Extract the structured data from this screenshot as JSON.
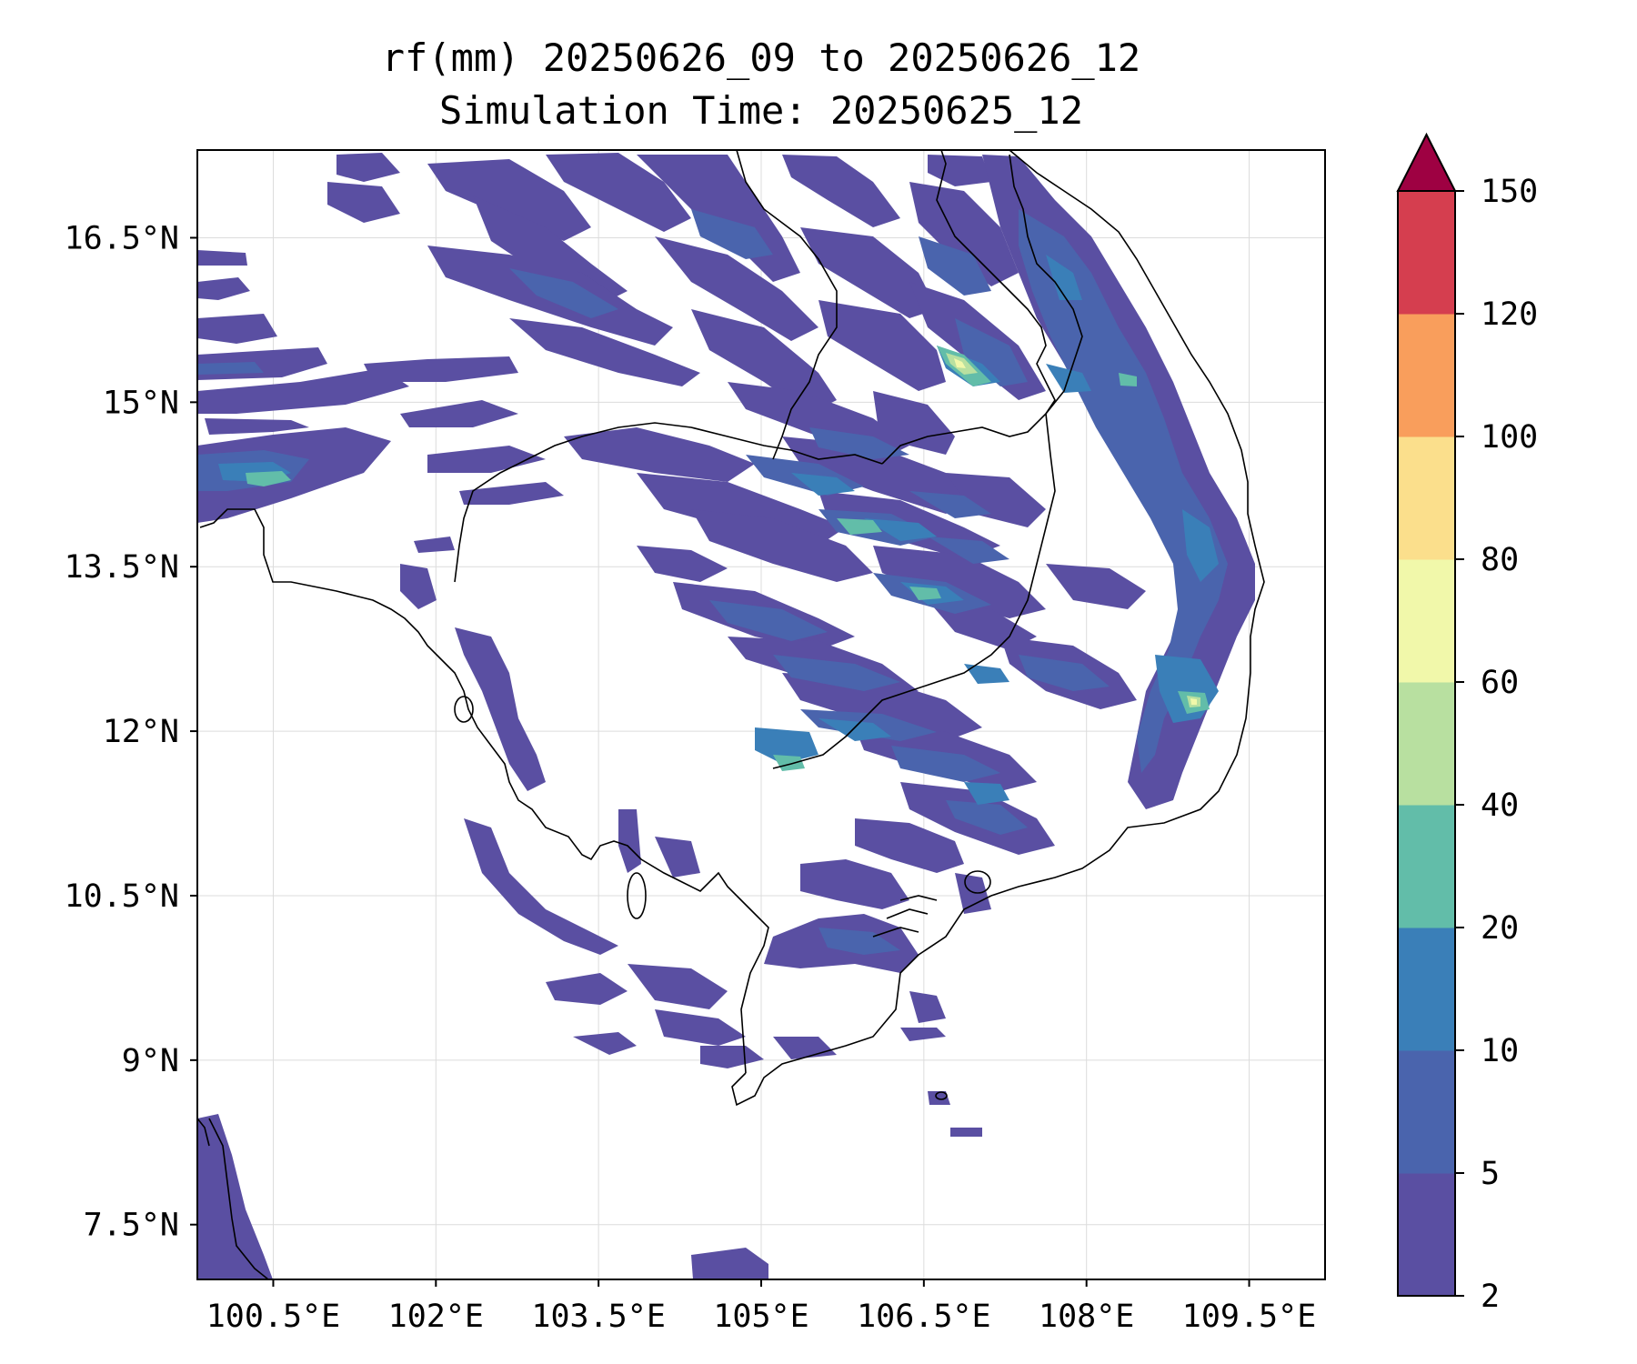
{
  "title": {
    "line1": "rf(mm) 20250626_09 to 20250626_12",
    "line2": "Simulation Time: 20250625_12"
  },
  "map": {
    "lon_range": [
      99.8,
      110.2
    ],
    "lat_range": [
      7.0,
      17.3
    ],
    "x_ticks": [
      {
        "value": 100.5,
        "label": "100.5°E"
      },
      {
        "value": 102.0,
        "label": "102°E"
      },
      {
        "value": 103.5,
        "label": "103.5°E"
      },
      {
        "value": 105.0,
        "label": "105°E"
      },
      {
        "value": 106.5,
        "label": "106.5°E"
      },
      {
        "value": 108.0,
        "label": "108°E"
      },
      {
        "value": 109.5,
        "label": "109.5°E"
      }
    ],
    "y_ticks": [
      {
        "value": 16.5,
        "label": "16.5°N"
      },
      {
        "value": 15.0,
        "label": "15°N"
      },
      {
        "value": 13.5,
        "label": "13.5°N"
      },
      {
        "value": 12.0,
        "label": "12°N"
      },
      {
        "value": 10.5,
        "label": "10.5°N"
      },
      {
        "value": 9.0,
        "label": "9°N"
      },
      {
        "value": 7.5,
        "label": "7.5°N"
      }
    ],
    "grid": true
  },
  "colorbar": {
    "levels": [
      2,
      5,
      10,
      20,
      40,
      60,
      80,
      100,
      120,
      150
    ],
    "labels": [
      "2",
      "5",
      "10",
      "20",
      "40",
      "60",
      "80",
      "100",
      "120",
      "150"
    ],
    "colors": [
      "#5a4fa2",
      "#4a64ad",
      "#3a7fb8",
      "#62bda9",
      "#b8e0a0",
      "#f1f8aa",
      "#fbdf8c",
      "#f99e5c",
      "#d53e4f"
    ],
    "extend_color": "#9e0142",
    "extend": "max"
  },
  "colors": {
    "rain_2_5": "#5a4fa2",
    "rain_5_10": "#4a64ad",
    "rain_10_20": "#3a7fb8",
    "rain_20_40": "#62bda9",
    "rain_40_60": "#b8e0a0",
    "rain_60_80": "#f1f8aa"
  }
}
